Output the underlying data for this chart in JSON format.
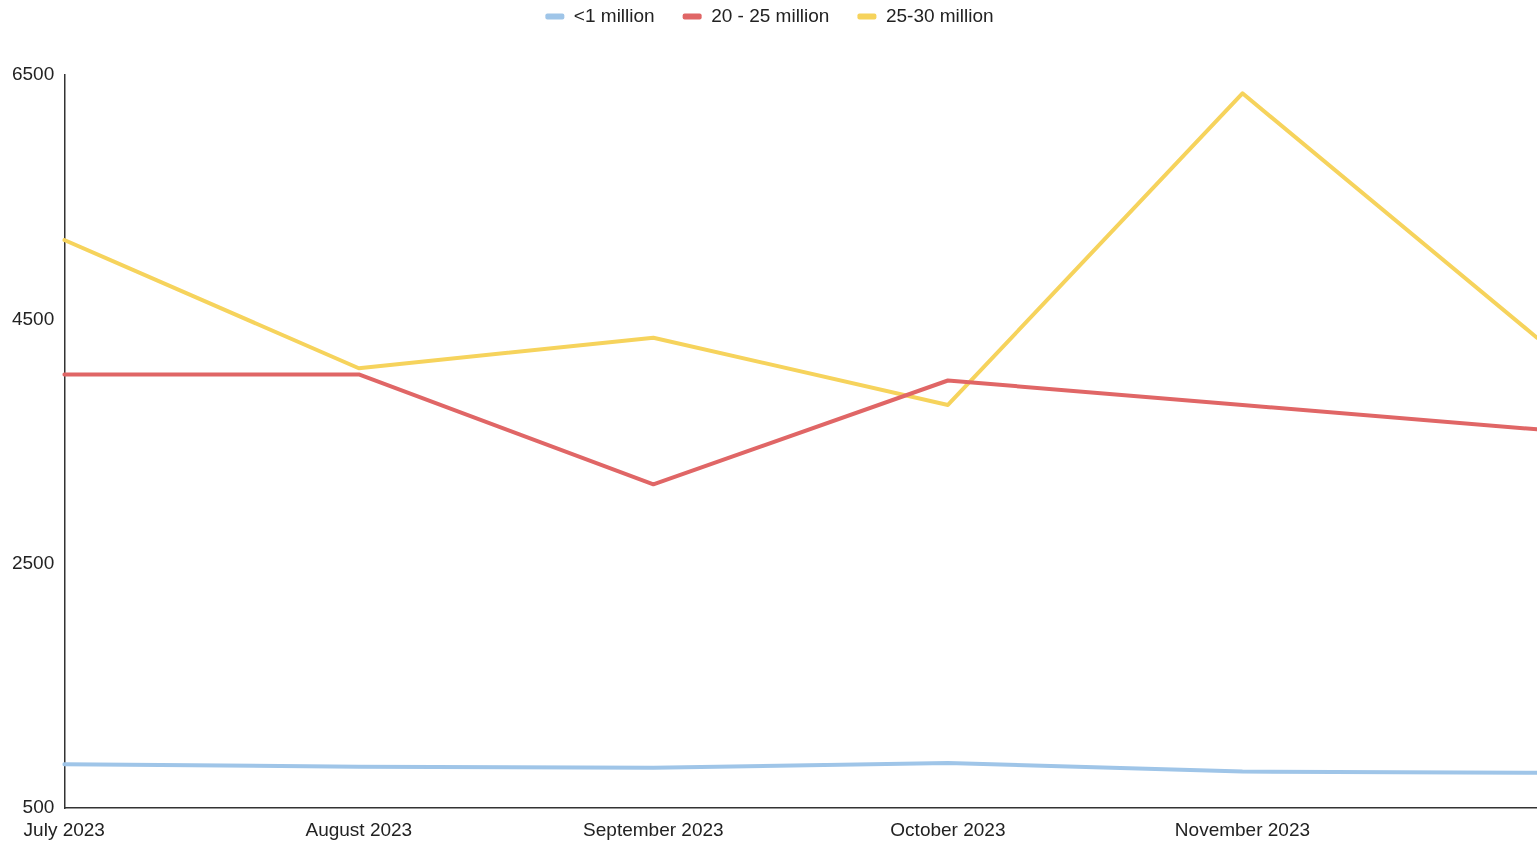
{
  "chart_data": {
    "type": "line",
    "categories": [
      "July 2023",
      "August 2023",
      "September 2023",
      "October 2023",
      "November 2023",
      null
    ],
    "series": [
      {
        "name": "<1 million",
        "color": "#9fc5e8",
        "values": [
          860,
          840,
          830,
          870,
          800,
          790
        ]
      },
      {
        "name": "20 - 25 million",
        "color": "#e06666",
        "values": [
          4050,
          4050,
          3150,
          4000,
          3800,
          3600
        ]
      },
      {
        "name": "25-30 million",
        "color": "#f6d35c",
        "values": [
          5150,
          4100,
          4350,
          3800,
          6350,
          4350
        ]
      }
    ],
    "ylim": [
      500,
      6500
    ],
    "yticks": [
      500,
      2500,
      4500,
      6500
    ],
    "grid": false,
    "legend": "top",
    "marker": "none",
    "line_style": "solid"
  }
}
